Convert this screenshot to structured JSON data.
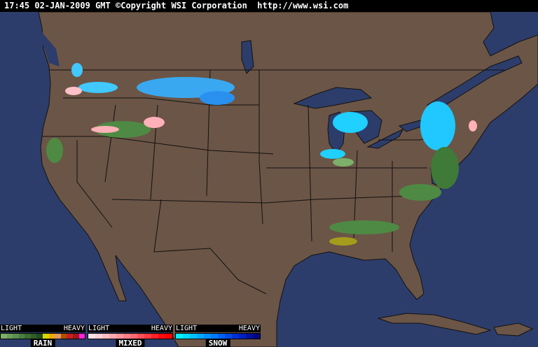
{
  "header": {
    "time": "17:45",
    "date": "02-JAN-2009",
    "zone": "GMT",
    "copyright": "©Copyright WSI Corporation",
    "url": "http://www.wsi.com"
  },
  "colors": {
    "ocean": "#2d3d6b",
    "land": "#6b5546",
    "border": "#1a1a1a"
  },
  "legend": [
    {
      "name": "RAIN",
      "light": "LIGHT",
      "heavy": "HEAVY",
      "colors": [
        "#7cb06a",
        "#6a9f5a",
        "#5a8f4d",
        "#4a7e40",
        "#3c6c34",
        "#2f5c29",
        "#234c1f",
        "#d8d800",
        "#f0a800",
        "#e09a60",
        "#b05000",
        "#c82020",
        "#a01818",
        "#ff20e0"
      ]
    },
    {
      "name": "MIXED",
      "light": "LIGHT",
      "heavy": "HEAVY",
      "colors": [
        "#ffe0e6",
        "#ffcfd6",
        "#ffbcc4",
        "#ffa8b0",
        "#ff949c",
        "#ff8088",
        "#ff6a70",
        "#ff5058",
        "#ff3a40",
        "#ff2028",
        "#ff0a10",
        "#ff0000"
      ]
    },
    {
      "name": "SNOW",
      "light": "LIGHT",
      "heavy": "HEAVY",
      "colors": [
        "#00f0ff",
        "#00d8ff",
        "#00c0ff",
        "#00a8ff",
        "#0090ff",
        "#0078ff",
        "#0060f0",
        "#0048e0",
        "#0030d0",
        "#0020c0",
        "#0010a0",
        "#000880"
      ]
    }
  ]
}
